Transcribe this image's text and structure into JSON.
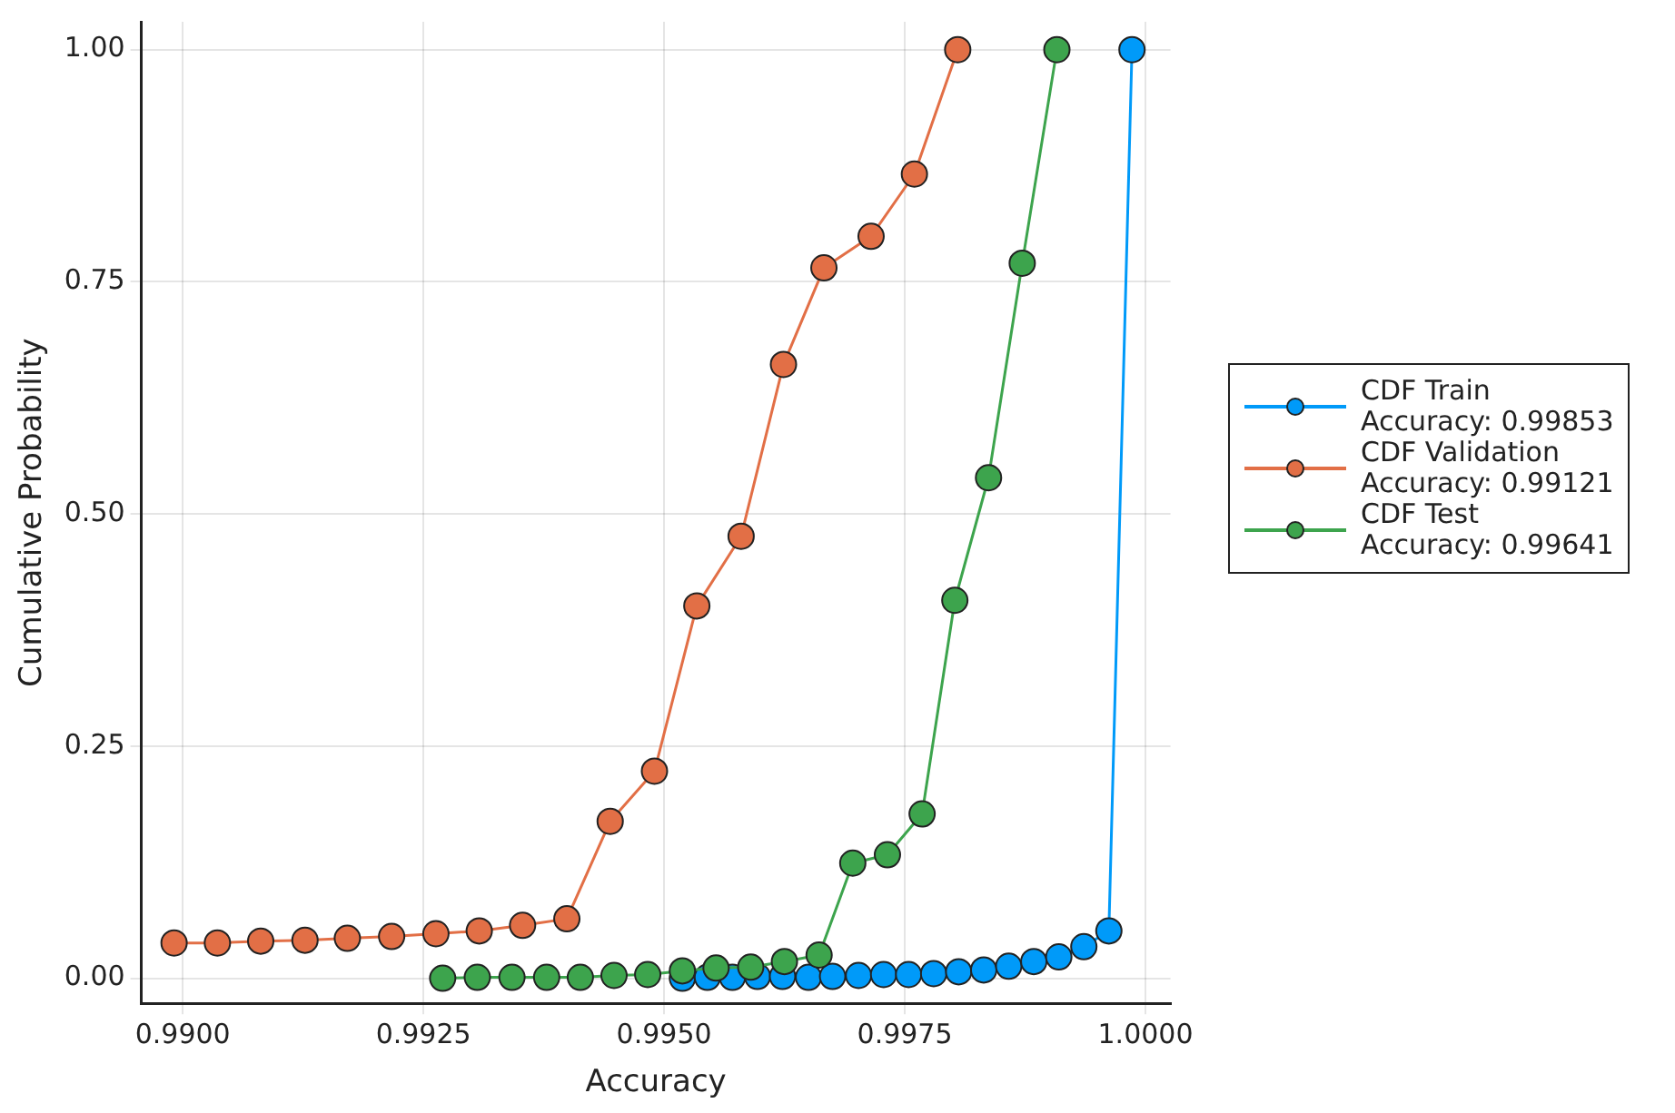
{
  "chart_data": {
    "type": "line",
    "xlabel": "Accuracy",
    "ylabel": "Cumulative Probability",
    "xlim": [
      0.98957,
      1.00026
    ],
    "ylim": [
      -0.027,
      1.03
    ],
    "xticks": [
      {
        "value": 0.99,
        "label": "0.9900"
      },
      {
        "value": 0.9925,
        "label": "0.9925"
      },
      {
        "value": 0.995,
        "label": "0.9950"
      },
      {
        "value": 0.9975,
        "label": "0.9975"
      },
      {
        "value": 1.0,
        "label": "1.0000"
      }
    ],
    "yticks": [
      {
        "value": 0,
        "label": "0.00"
      },
      {
        "value": 0.25,
        "label": "0.25"
      },
      {
        "value": 0.5,
        "label": "0.50"
      },
      {
        "value": 0.75,
        "label": "0.75"
      },
      {
        "value": 1.0,
        "label": "1.00"
      }
    ],
    "grid": true,
    "legend": "right",
    "marker": "circle",
    "line_style": "solid",
    "series": [
      {
        "name": "CDF Train\nAccuracy: 0.99853",
        "color": "#009af9",
        "x": [
          0.99519,
          0.99545,
          0.99571,
          0.99597,
          0.99623,
          0.9965,
          0.99675,
          0.99702,
          0.99728,
          0.99754,
          0.9978,
          0.99806,
          0.99832,
          0.99858,
          0.99884,
          0.9991,
          0.99936,
          0.99962,
          0.99986
        ],
        "values": [
          0,
          0.001,
          0.001,
          0.002,
          0.002,
          0.001,
          0.002,
          0.003,
          0.004,
          0.004,
          0.005,
          0.007,
          0.009,
          0.013,
          0.018,
          0.023,
          0.034,
          0.051,
          1.0
        ]
      },
      {
        "name": "CDF Validation\nAccuracy: 0.99121",
        "color": "#e26f46",
        "x": [
          0.98991,
          0.99036,
          0.99081,
          0.99127,
          0.99171,
          0.99217,
          0.99263,
          0.99308,
          0.99353,
          0.99399,
          0.99444,
          0.9949,
          0.99534,
          0.9958,
          0.99624,
          0.99666,
          0.99715,
          0.9976,
          0.99805
        ],
        "values": [
          0.038,
          0.038,
          0.04,
          0.041,
          0.043,
          0.045,
          0.048,
          0.051,
          0.057,
          0.064,
          0.169,
          0.223,
          0.401,
          0.476,
          0.661,
          0.765,
          0.799,
          0.866,
          1.0
        ]
      },
      {
        "name": "CDF Test\nAccuracy: 0.99641",
        "color": "#3da44d",
        "x": [
          0.9927,
          0.99306,
          0.99342,
          0.99378,
          0.99413,
          0.99448,
          0.99483,
          0.99519,
          0.99554,
          0.9959,
          0.99625,
          0.99661,
          0.99696,
          0.99732,
          0.99768,
          0.99802,
          0.99837,
          0.99872,
          0.99908
        ],
        "values": [
          0,
          0.001,
          0.001,
          0.001,
          0.001,
          0.003,
          0.004,
          0.008,
          0.011,
          0.012,
          0.018,
          0.025,
          0.124,
          0.133,
          0.177,
          0.407,
          0.539,
          0.77,
          1.0
        ]
      }
    ]
  }
}
